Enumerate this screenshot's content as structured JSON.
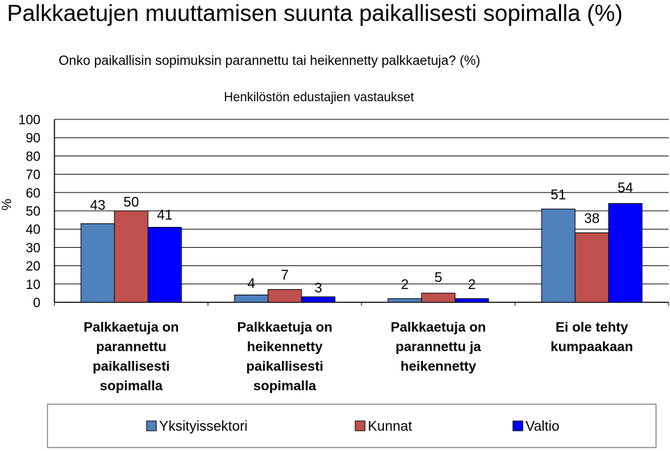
{
  "page": {
    "title": "Palkkaetujen muuttamisen suunta paikallisesti sopimalla (%)"
  },
  "chart_data": {
    "type": "bar",
    "title": "Onko paikallisin sopimuksin parannettu tai heikennetty palkkaetuja? (%)",
    "subtitle": "Henkilöstön edustajien vastaukset",
    "ylabel": "%",
    "xlabel": "",
    "ylim": [
      0,
      100
    ],
    "yticks": [
      0,
      10,
      20,
      30,
      40,
      50,
      60,
      70,
      80,
      90,
      100
    ],
    "grid": true,
    "legend_position": "bottom",
    "categories": [
      [
        "Palkkaetuja on",
        "parannettu",
        "paikallisesti",
        "sopimalla"
      ],
      [
        "Palkkaetuja on",
        "heikennetty",
        "paikallisesti",
        "sopimalla"
      ],
      [
        "Palkkaetuja on",
        "parannettu ja",
        "heikennetty"
      ],
      [
        "Ei ole tehty",
        "kumpaakaan"
      ]
    ],
    "series": [
      {
        "name": "Yksityissektori",
        "color": "#4F81BD",
        "values": [
          43,
          4,
          2,
          51
        ]
      },
      {
        "name": "Kunnat",
        "color": "#C0504D",
        "values": [
          50,
          7,
          5,
          38
        ]
      },
      {
        "name": "Valtio",
        "color": "#0000FF",
        "values": [
          41,
          3,
          2,
          54
        ]
      }
    ]
  }
}
